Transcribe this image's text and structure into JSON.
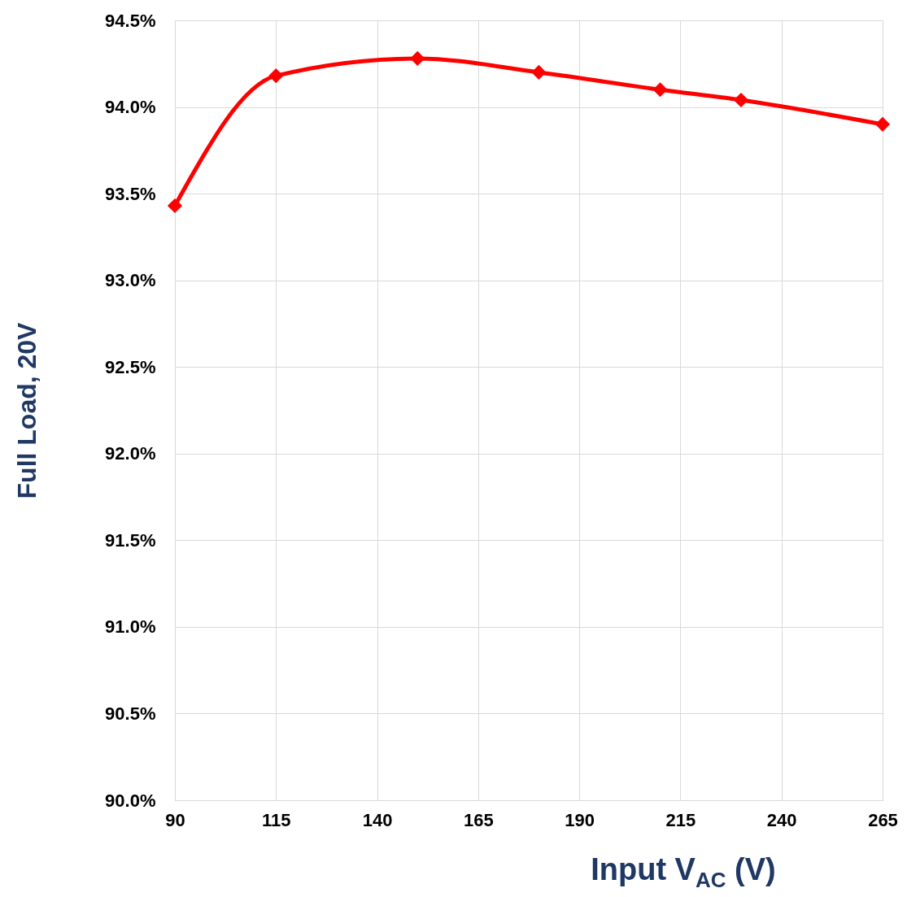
{
  "chart_data": {
    "type": "line",
    "xlabel": "Input V$_{AC}$ (V)",
    "ylabel": "Full Load, 20V",
    "x": [
      90,
      115,
      150,
      180,
      210,
      230,
      265
    ],
    "series": [
      {
        "color": "#ff0000",
        "values": [
          93.43,
          94.18,
          94.28,
          94.2,
          94.1,
          94.04,
          93.9
        ]
      }
    ],
    "xlim": [
      90,
      265
    ],
    "xticks": [
      90,
      115,
      140,
      165,
      190,
      215,
      240,
      265
    ],
    "ylim": [
      90,
      94.5
    ],
    "yticks": [
      {
        "value": 90,
        "label": "90.0%"
      },
      {
        "value": 90.5,
        "label": "90.5%"
      },
      {
        "value": 91,
        "label": "91.0%"
      },
      {
        "value": 91.5,
        "label": "91.5%"
      },
      {
        "value": 92,
        "label": "92.0%"
      },
      {
        "value": 92.5,
        "label": "92.5%"
      },
      {
        "value": 93,
        "label": "93.0%"
      },
      {
        "value": 93.5,
        "label": "93.5%"
      },
      {
        "value": 94,
        "label": "94.0%"
      },
      {
        "value": 94.5,
        "label": "94.5%"
      }
    ],
    "grid": true,
    "marker": "diamond",
    "line_style": "solid"
  }
}
